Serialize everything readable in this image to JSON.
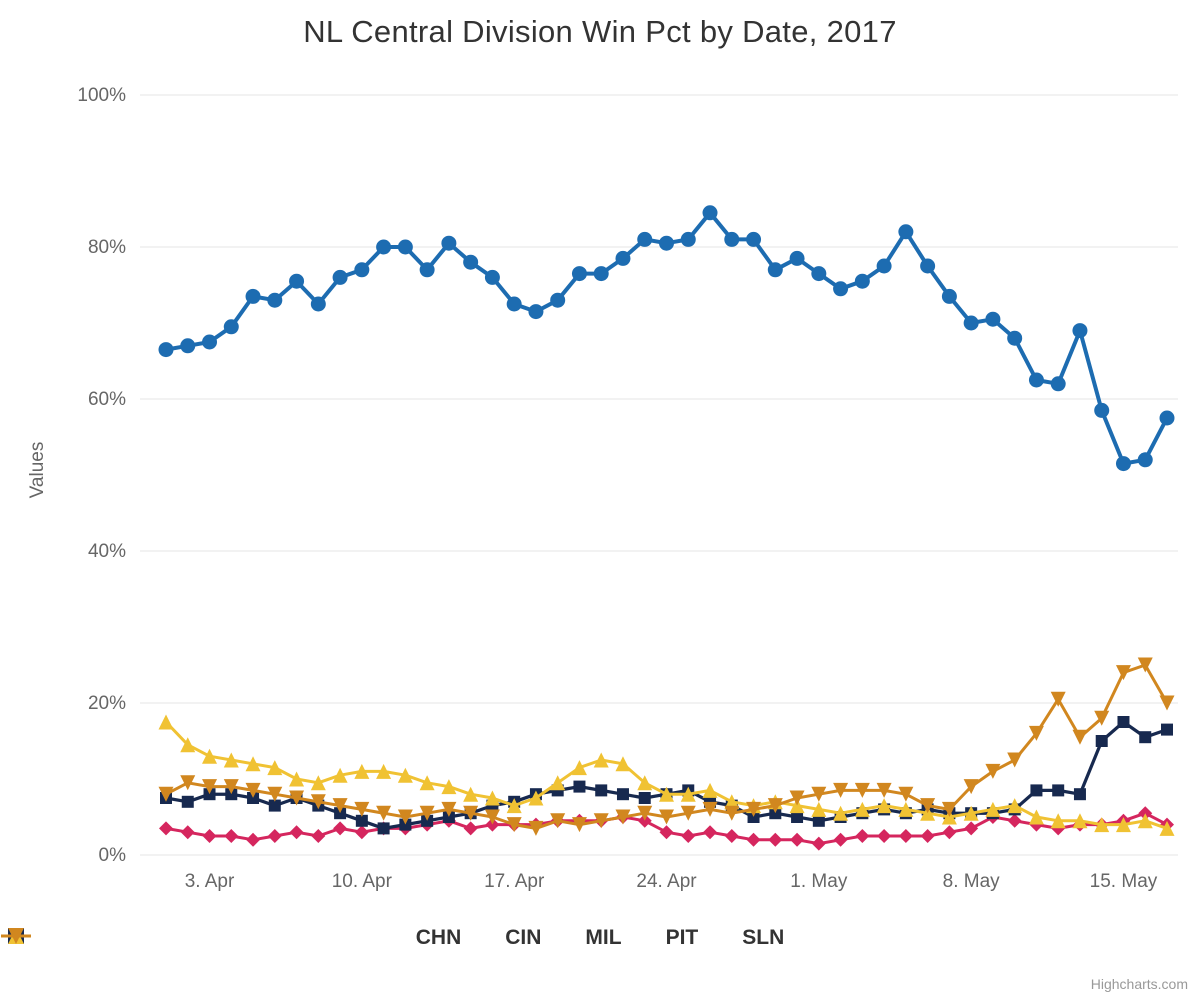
{
  "title": "NL Central Division Win Pct by Date, 2017",
  "credits": "Highcharts.com",
  "chart_data": {
    "type": "line",
    "title": "NL Central Division Win Pct by Date, 2017",
    "xlabel": "",
    "ylabel": "Values",
    "ylim": [
      0,
      100
    ],
    "y_ticks": [
      0,
      20,
      40,
      60,
      80,
      100
    ],
    "y_tick_suffix": "%",
    "grid": true,
    "legend_position": "bottom",
    "x_unit": "day",
    "x_range_note": "daily points from 1. Apr to 17. May 2017",
    "x_tick_indices": [
      2,
      9,
      16,
      23,
      30,
      37,
      44
    ],
    "x_tick_labels": [
      "3. Apr",
      "10. Apr",
      "17. Apr",
      "24. Apr",
      "1. May",
      "8. May",
      "15. May"
    ],
    "series": [
      {
        "name": "CHN",
        "color": "#1d6cb1",
        "marker": "circle",
        "values": [
          66.5,
          67,
          67.5,
          69.5,
          73.5,
          73,
          75.5,
          72.5,
          76,
          77,
          80,
          80,
          77,
          80.5,
          78,
          76,
          72.5,
          71.5,
          73,
          76.5,
          76.5,
          78.5,
          81,
          80.5,
          81,
          84.5,
          81,
          81,
          77,
          78.5,
          76.5,
          74.5,
          75.5,
          77.5,
          82,
          77.5,
          73.5,
          70,
          70.5,
          68,
          62.5,
          62,
          69,
          58.5,
          51.5,
          52,
          57.5
        ]
      },
      {
        "name": "CIN",
        "color": "#d5265e",
        "marker": "diamond",
        "values": [
          3.5,
          3,
          2.5,
          2.5,
          2,
          2.5,
          3,
          2.5,
          3.5,
          3,
          3.5,
          3.5,
          4,
          4.5,
          3.5,
          4,
          4,
          4,
          4.5,
          4.5,
          4.5,
          5,
          4.5,
          3,
          2.5,
          3,
          2.5,
          2,
          2,
          2,
          1.5,
          2,
          2.5,
          2.5,
          2.5,
          2.5,
          3,
          3.5,
          5,
          4.5,
          4,
          3.5,
          4,
          4,
          4.5,
          5.5,
          4
        ]
      },
      {
        "name": "MIL",
        "color": "#17294f",
        "marker": "square",
        "values": [
          7.5,
          7,
          8,
          8,
          7.5,
          6.5,
          7.5,
          6.5,
          5.5,
          4.5,
          3.5,
          4,
          4.5,
          5,
          5.5,
          6.5,
          7,
          8,
          8.5,
          9,
          8.5,
          8,
          7.5,
          8,
          8.5,
          7,
          6.5,
          5,
          5.5,
          5,
          4.5,
          5,
          5.5,
          6,
          5.5,
          6,
          5.5,
          5.5,
          5.5,
          6,
          8.5,
          8.5,
          8,
          15,
          17.5,
          15.5,
          16.5
        ]
      },
      {
        "name": "PIT",
        "color": "#f0c233",
        "marker": "triangle-up",
        "values": [
          17.5,
          14.5,
          13,
          12.5,
          12,
          11.5,
          10,
          9.5,
          10.5,
          11,
          11,
          10.5,
          9.5,
          9,
          8,
          7.5,
          6.5,
          7.5,
          9.5,
          11.5,
          12.5,
          12,
          9.5,
          8,
          8,
          8.5,
          7,
          6.5,
          7,
          6.5,
          6,
          5.5,
          6,
          6.5,
          6,
          5.5,
          5,
          5.5,
          6,
          6.5,
          5,
          4.5,
          4.5,
          4,
          4,
          4.5,
          3.5
        ]
      },
      {
        "name": "SLN",
        "color": "#d1871f",
        "marker": "triangle-down",
        "values": [
          8,
          9.5,
          9,
          9,
          8.5,
          8,
          7.5,
          7,
          6.5,
          6,
          5.5,
          5,
          5.5,
          6,
          5.5,
          5,
          4,
          3.5,
          4.5,
          4,
          4.5,
          5,
          5.5,
          5,
          5.5,
          6,
          5.5,
          6,
          6.5,
          7.5,
          8,
          8.5,
          8.5,
          8.5,
          8,
          6.5,
          6,
          9,
          11,
          12.5,
          16,
          20.5,
          15.5,
          18,
          24,
          25,
          20
        ]
      }
    ]
  }
}
